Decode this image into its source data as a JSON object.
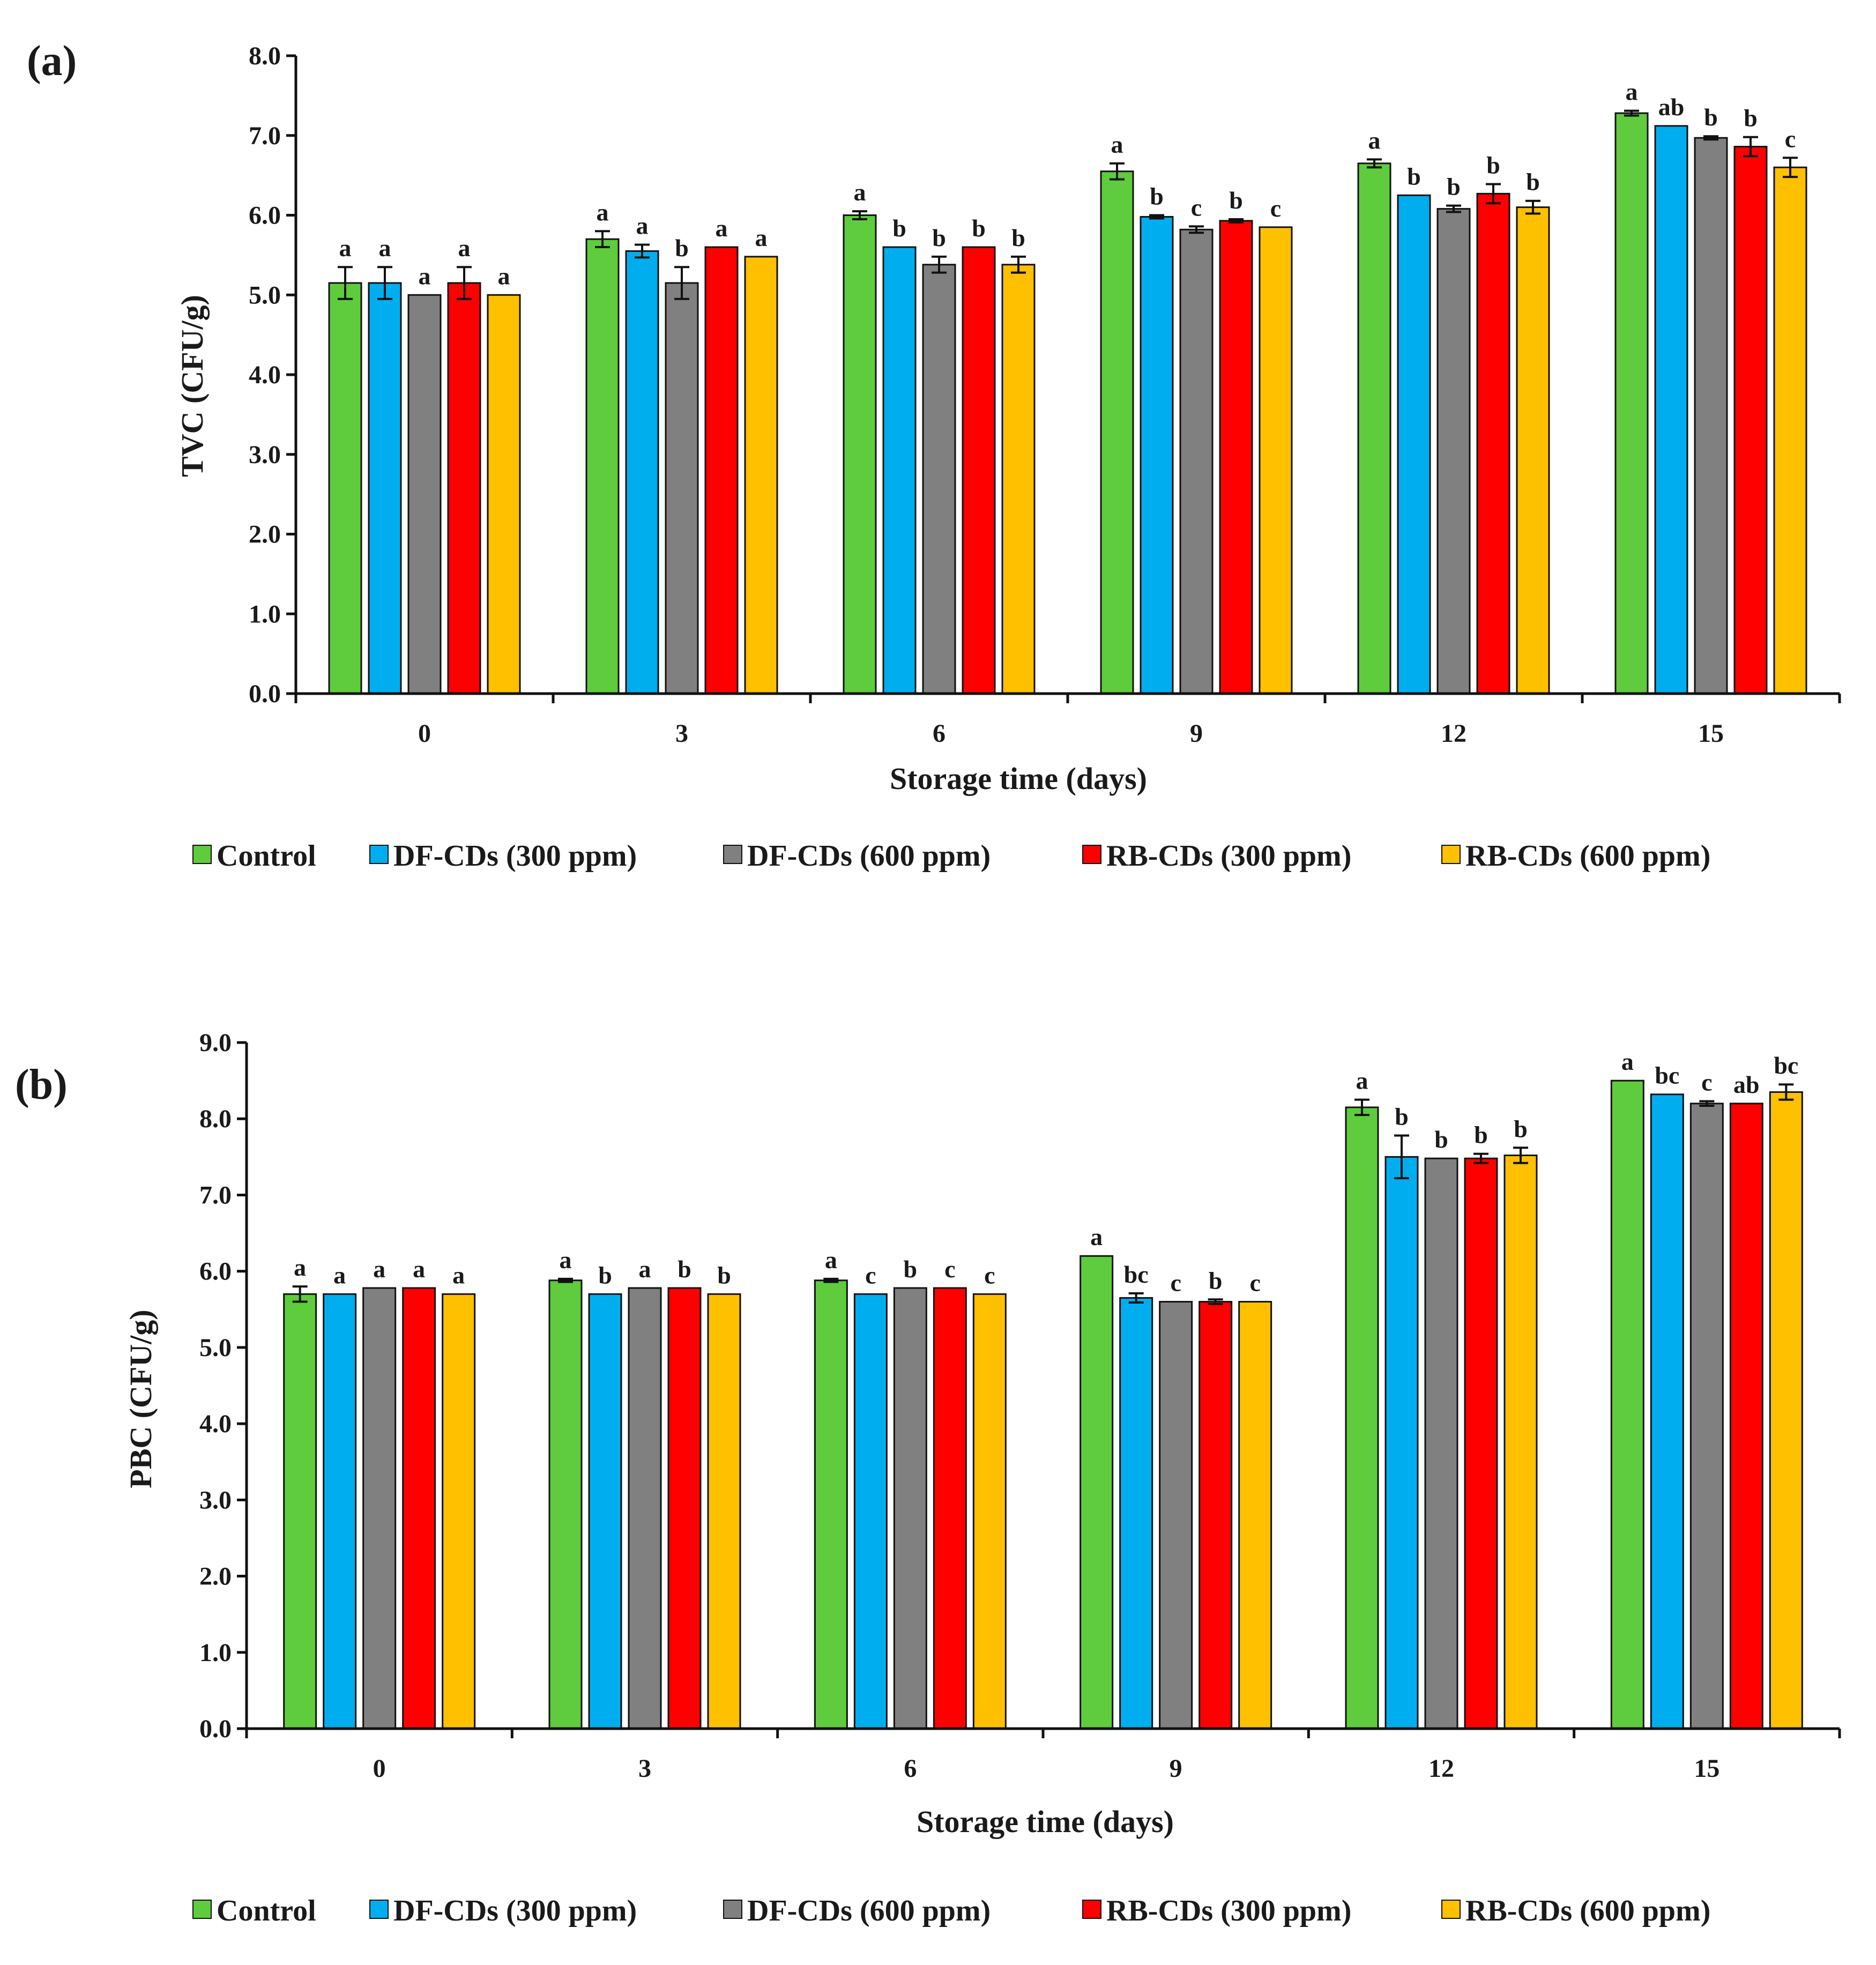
{
  "chart_data": [
    {
      "panel": "(a)",
      "type": "bar",
      "title": "",
      "xlabel": "Storage time (days)",
      "ylabel": "TVC (CFU/g)",
      "ylim": [
        0,
        8
      ],
      "yticks": [
        "0.0",
        "1.0",
        "2.0",
        "3.0",
        "4.0",
        "5.0",
        "6.0",
        "7.0",
        "8.0"
      ],
      "categories": [
        "0",
        "3",
        "6",
        "9",
        "12",
        "15"
      ],
      "series": [
        {
          "name": "Control",
          "color": "#5ECC3C",
          "values": [
            5.15,
            5.7,
            6.0,
            6.55,
            6.65,
            7.28
          ],
          "errors": [
            0.2,
            0.1,
            0.05,
            0.1,
            0.05,
            0.03
          ],
          "labels": [
            "a",
            "a",
            "a",
            "a",
            "a",
            "a"
          ]
        },
        {
          "name": "DF-CDs (300 ppm)",
          "color": "#00AEEF",
          "values": [
            5.15,
            5.55,
            5.6,
            5.98,
            6.25,
            7.12
          ],
          "errors": [
            0.2,
            0.08,
            0.0,
            0.02,
            0.0,
            0.0
          ],
          "labels": [
            "a",
            "a",
            "b",
            "b",
            "b",
            "ab"
          ]
        },
        {
          "name": "DF-CDs (600 ppm)",
          "color": "#808080",
          "values": [
            5.0,
            5.15,
            5.38,
            5.82,
            6.08,
            6.97
          ],
          "errors": [
            0.0,
            0.2,
            0.1,
            0.04,
            0.04,
            0.02
          ],
          "labels": [
            "a",
            "b",
            "b",
            "c",
            "b",
            "b"
          ]
        },
        {
          "name": "RB-CDs (300 ppm)",
          "color": "#FF0000",
          "values": [
            5.15,
            5.6,
            5.6,
            5.93,
            6.27,
            6.86
          ],
          "errors": [
            0.2,
            0.0,
            0.0,
            0.02,
            0.12,
            0.12
          ],
          "labels": [
            "a",
            "a",
            "b",
            "b",
            "b",
            "b"
          ]
        },
        {
          "name": "RB-CDs (600 ppm)",
          "color": "#FFC000",
          "values": [
            5.0,
            5.48,
            5.38,
            5.85,
            6.1,
            6.6
          ],
          "errors": [
            0.0,
            0.0,
            0.1,
            0.0,
            0.08,
            0.12
          ],
          "labels": [
            "a",
            "a",
            "b",
            "c",
            "b",
            "c"
          ]
        }
      ]
    },
    {
      "panel": "(b)",
      "type": "bar",
      "title": "",
      "xlabel": "Storage time (days)",
      "ylabel": "PBC (CFU/g)",
      "ylim": [
        0,
        9
      ],
      "yticks": [
        "0.0",
        "1.0",
        "2.0",
        "3.0",
        "4.0",
        "5.0",
        "6.0",
        "7.0",
        "8.0",
        "9.0"
      ],
      "categories": [
        "0",
        "3",
        "6",
        "9",
        "12",
        "15"
      ],
      "series": [
        {
          "name": "Control",
          "color": "#5ECC3C",
          "values": [
            5.7,
            5.88,
            5.88,
            6.2,
            8.15,
            8.5
          ],
          "errors": [
            0.1,
            0.02,
            0.02,
            0.0,
            0.1,
            0.0
          ],
          "labels": [
            "a",
            "a",
            "a",
            "a",
            "a",
            "a"
          ]
        },
        {
          "name": "DF-CDs (300 ppm)",
          "color": "#00AEEF",
          "values": [
            5.7,
            5.7,
            5.7,
            5.65,
            7.5,
            8.32
          ],
          "errors": [
            0.0,
            0.0,
            0.0,
            0.06,
            0.28,
            0.0
          ],
          "labels": [
            "a",
            "b",
            "c",
            "bc",
            "b",
            "bc"
          ]
        },
        {
          "name": "DF-CDs (600 ppm)",
          "color": "#808080",
          "values": [
            5.78,
            5.78,
            5.78,
            5.6,
            7.48,
            8.2
          ],
          "errors": [
            0.0,
            0.0,
            0.0,
            0.0,
            0.0,
            0.03
          ],
          "labels": [
            "a",
            "a",
            "b",
            "c",
            "b",
            "c"
          ]
        },
        {
          "name": "RB-CDs (300 ppm)",
          "color": "#FF0000",
          "values": [
            5.78,
            5.78,
            5.78,
            5.6,
            7.48,
            8.2
          ],
          "errors": [
            0.0,
            0.0,
            0.0,
            0.03,
            0.06,
            0.0
          ],
          "labels": [
            "a",
            "b",
            "c",
            "b",
            "b",
            "ab"
          ]
        },
        {
          "name": "RB-CDs (600 ppm)",
          "color": "#FFC000",
          "values": [
            5.7,
            5.7,
            5.7,
            5.6,
            7.52,
            8.35
          ],
          "errors": [
            0.0,
            0.0,
            0.0,
            0.0,
            0.1,
            0.1
          ],
          "labels": [
            "a",
            "b",
            "c",
            "c",
            "b",
            "bc"
          ]
        }
      ]
    }
  ]
}
